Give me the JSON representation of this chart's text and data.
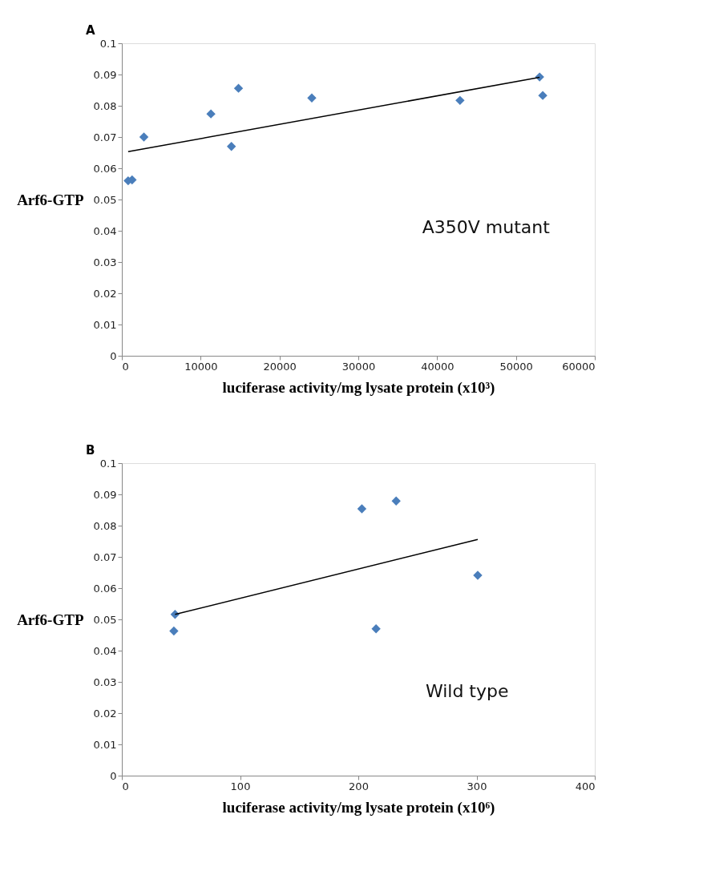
{
  "chart_data": [
    {
      "type": "scatter",
      "title": "A",
      "xlabel": "luciferase activity/mg  lysate protein  (x10³)",
      "ylabel": "Arf6-GTP",
      "xlim": [
        0,
        60000
      ],
      "xticks": [
        0,
        10000,
        20000,
        30000,
        40000,
        50000,
        60000
      ],
      "ylim": [
        0,
        0.1
      ],
      "yticks": [
        0,
        0.01,
        0.02,
        0.03,
        0.04,
        0.05,
        0.06,
        0.07,
        0.08,
        0.09,
        0.1
      ],
      "grid": false,
      "series": [
        {
          "color": "#4a7ebb",
          "marker": "diamond",
          "x": [
            800,
            1300,
            2800,
            11300,
            13900,
            14800,
            24100,
            42900,
            53000,
            53400
          ],
          "values": [
            0.056,
            0.0563,
            0.07,
            0.0774,
            0.067,
            0.0856,
            0.0825,
            0.0817,
            0.0892,
            0.0833
          ]
        },
        {
          "type": "line",
          "color": "#000000",
          "marker": "none",
          "line_style": "solid",
          "x": [
            800,
            53000
          ],
          "values": [
            0.0653,
            0.0891
          ]
        }
      ],
      "annotations": [
        "A350V mutant"
      ]
    },
    {
      "type": "scatter",
      "title": "B",
      "xlabel": "luciferase activity/mg  lysate protein  (x10⁶)",
      "ylabel": "Arf6-GTP",
      "xlim": [
        0,
        400
      ],
      "xticks": [
        0,
        100,
        200,
        300,
        400
      ],
      "ylim": [
        0,
        0.1
      ],
      "yticks": [
        0,
        0.01,
        0.02,
        0.03,
        0.04,
        0.05,
        0.06,
        0.07,
        0.08,
        0.09,
        0.1
      ],
      "grid": false,
      "series": [
        {
          "color": "#4a7ebb",
          "marker": "diamond",
          "x": [
            45,
            44,
            203,
            232,
            215,
            301
          ],
          "values": [
            0.0516,
            0.0463,
            0.0854,
            0.0879,
            0.047,
            0.0641
          ]
        },
        {
          "type": "line",
          "color": "#000000",
          "marker": "none",
          "line_style": "solid",
          "x": [
            45,
            301
          ],
          "values": [
            0.0516,
            0.0756
          ]
        }
      ],
      "annotations": [
        "Wild type"
      ]
    }
  ]
}
